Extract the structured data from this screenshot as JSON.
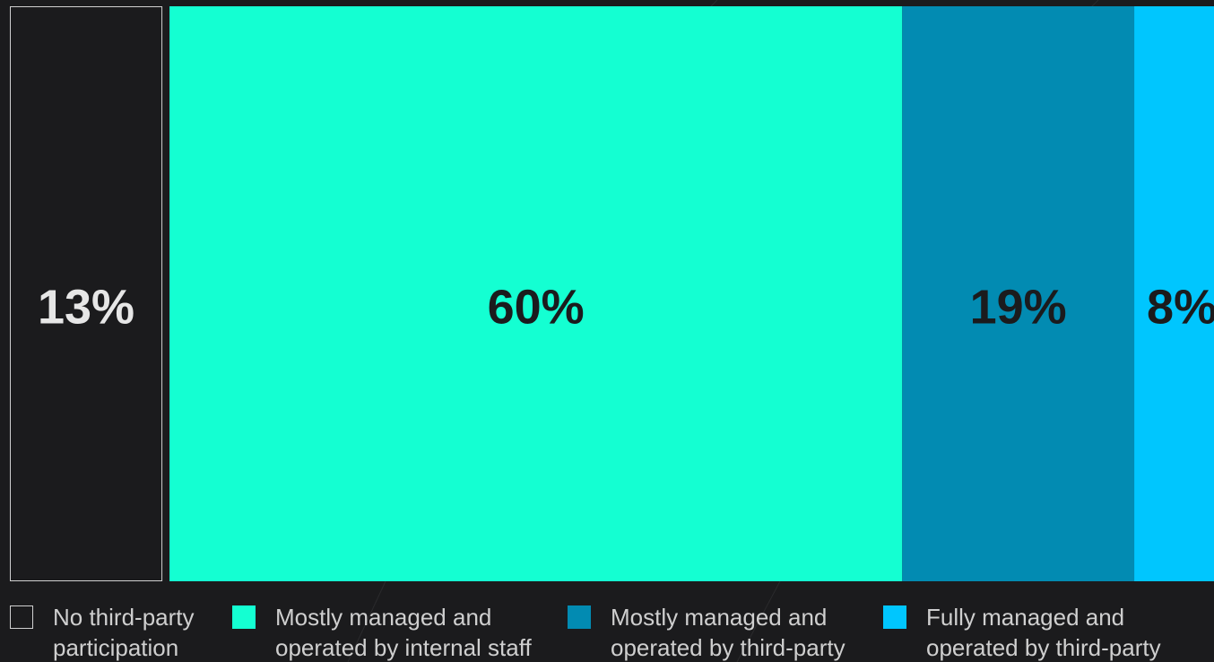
{
  "chart_data": {
    "type": "bar",
    "subtype": "100%-stacked-horizontal",
    "categories": [
      "No third-party participation",
      "Mostly managed and operated by internal staff",
      "Mostly managed and operated by third-party",
      "Fully managed and operated by third-party"
    ],
    "values": [
      13,
      60,
      19,
      8
    ],
    "data_labels": [
      "13%",
      "60%",
      "19%",
      "8%"
    ],
    "legend": {
      "placement": "bottom",
      "entries": [
        {
          "line1": "No third-party",
          "line2": "participation"
        },
        {
          "line1": "Mostly managed and",
          "line2": "operated by internal staff"
        },
        {
          "line1": "Mostly managed and",
          "line2": "operated by third-party"
        },
        {
          "line1": "Fully managed and",
          "line2": "operated by third-party"
        }
      ]
    },
    "colors": [
      "#1b1b1d",
      "#14ffd2",
      "#028bb2",
      "#00c6fe"
    ],
    "outline_color": "#d0d0d0",
    "label_colors": [
      "#e6e6e6",
      "#1b1b1d",
      "#1b1b1d",
      "#1b1b1d"
    ],
    "title": "",
    "xlabel": "",
    "ylabel": ""
  }
}
